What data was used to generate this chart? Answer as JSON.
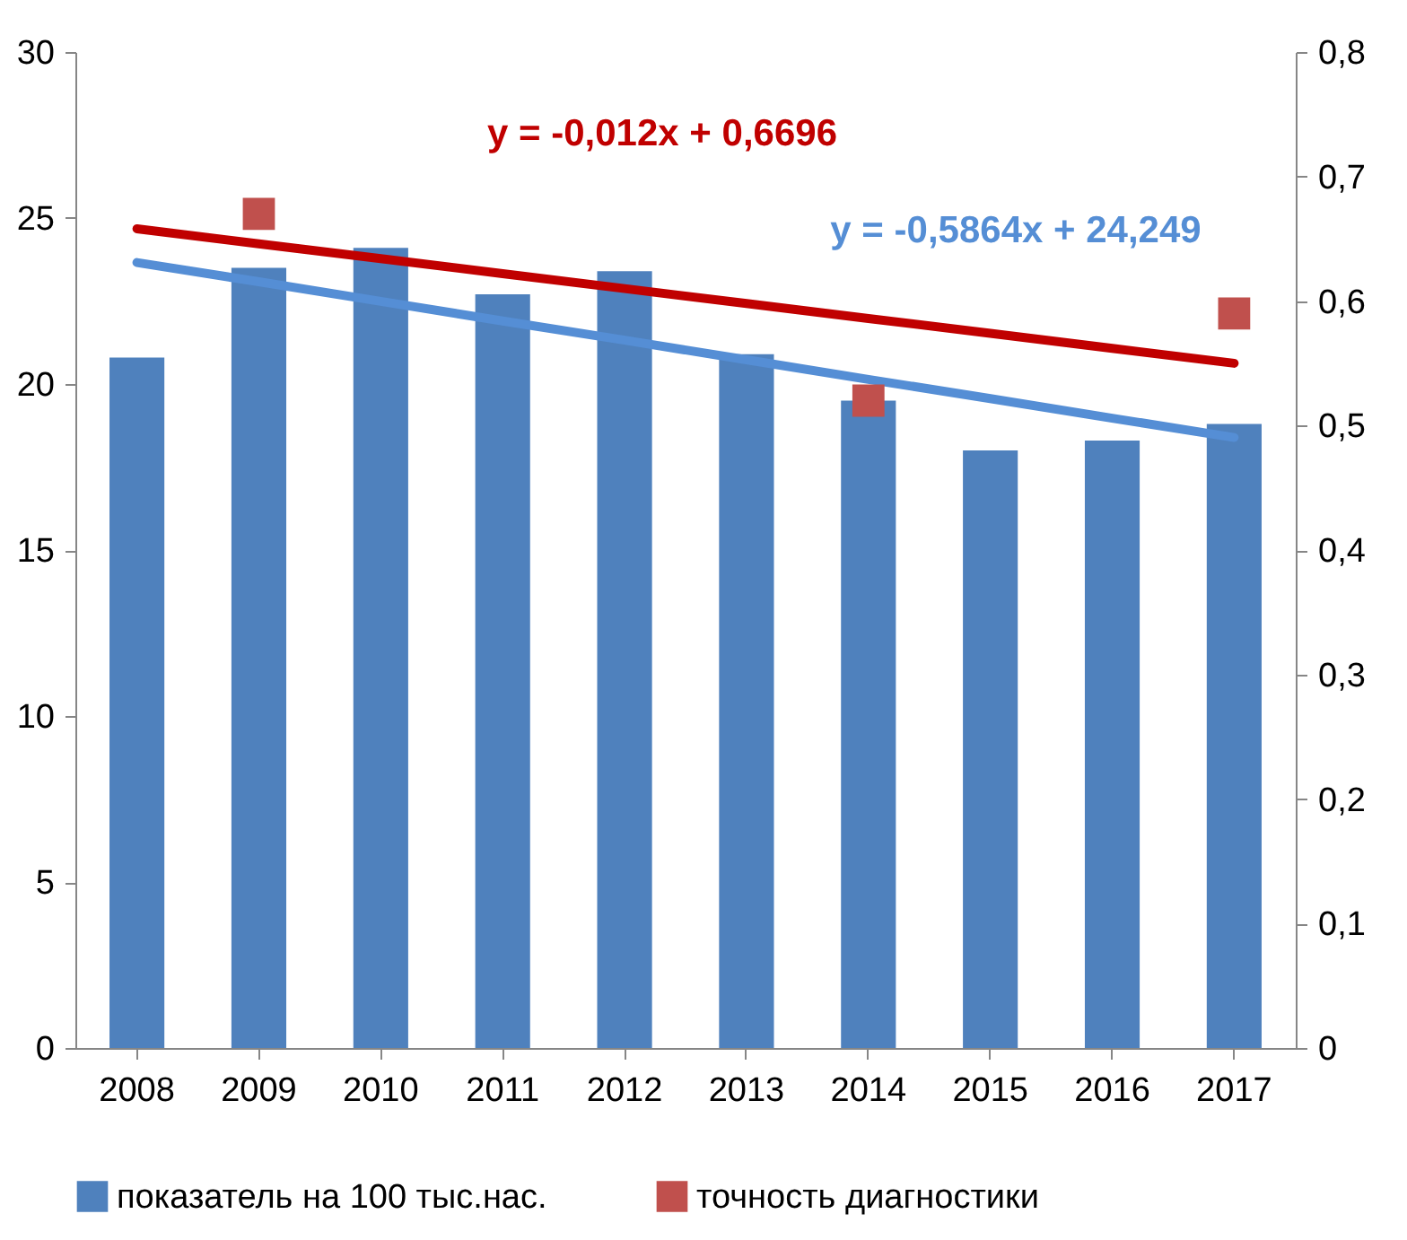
{
  "chart_data": {
    "type": "bar",
    "categories": [
      "2008",
      "2009",
      "2010",
      "2011",
      "2012",
      "2013",
      "2014",
      "2015",
      "2016",
      "2017"
    ],
    "series": [
      {
        "name": "показатель на 100 тыс.нас.",
        "color": "#4f81bd",
        "values": [
          20.8,
          23.5,
          24.1,
          22.7,
          23.4,
          20.9,
          19.5,
          18.0,
          18.3,
          18.8
        ]
      },
      {
        "type": "line",
        "marker": "none",
        "color": "#558ed5",
        "values": [
          23.66,
          23.08,
          22.49,
          21.9,
          21.32,
          20.73,
          20.14,
          19.56,
          18.97,
          18.39
        ]
      },
      {
        "name": "точность диагностики",
        "type": "scatter",
        "marker": "square",
        "axis": "y2",
        "color": "#c0504d",
        "values": [
          null,
          0.67,
          null,
          null,
          null,
          null,
          0.52,
          null,
          null,
          0.59
        ]
      },
      {
        "type": "line",
        "marker": "none",
        "axis": "y2",
        "color": "#c00000",
        "values": [
          0.658,
          0.646,
          0.634,
          0.622,
          0.61,
          0.598,
          0.586,
          0.574,
          0.562,
          0.55
        ]
      }
    ],
    "annotations": [
      "y = -0,5864x + 24,249",
      "y = -0,012x + 0,6696"
    ],
    "ylim": [
      0,
      30
    ],
    "yticks": [
      0,
      5,
      10,
      15,
      20,
      25,
      30
    ],
    "y2lim": [
      0,
      0.8
    ],
    "y2ticks": [
      {
        "value": 0,
        "label": "0"
      },
      {
        "value": 0.1,
        "label": "0,1"
      },
      {
        "value": 0.2,
        "label": "0,2"
      },
      {
        "value": 0.3,
        "label": "0,3"
      },
      {
        "value": 0.4,
        "label": "0,4"
      },
      {
        "value": 0.5,
        "label": "0,5"
      },
      {
        "value": 0.6,
        "label": "0,6"
      },
      {
        "value": 0.7,
        "label": "0,7"
      },
      {
        "value": 0.8,
        "label": "0,8"
      }
    ],
    "legend": "bottom",
    "grid": false
  }
}
